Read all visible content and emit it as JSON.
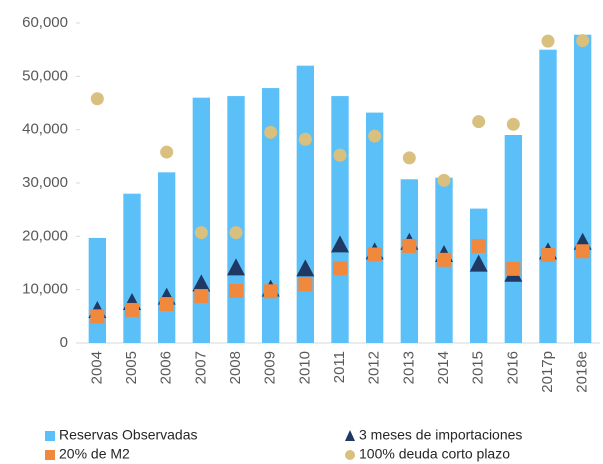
{
  "chart_data": {
    "type": "bar",
    "categories": [
      "2004",
      "2005",
      "2006",
      "2007",
      "2008",
      "2009",
      "2010",
      "2011",
      "2012",
      "2013",
      "2014",
      "2015",
      "2016",
      "2017p",
      "2018e"
    ],
    "series": [
      {
        "name": "Reservas Observadas",
        "type": "bar",
        "color": "#5bc0f8",
        "values": [
          19700,
          28000,
          32000,
          46000,
          46300,
          47800,
          52000,
          46300,
          43200,
          30700,
          31000,
          25200,
          39000,
          55000,
          57800
        ]
      },
      {
        "name": "3 meses de importaciones",
        "type": "triangle",
        "color": "#1f3864",
        "values": [
          6000,
          7500,
          8500,
          11000,
          14000,
          10000,
          13800,
          18300,
          17000,
          18800,
          16500,
          14700,
          12800,
          17000,
          18800
        ]
      },
      {
        "name": "20% de M2",
        "type": "square",
        "color": "#f0883e",
        "values": [
          5000,
          6200,
          7300,
          8800,
          9800,
          9700,
          11000,
          14000,
          16600,
          18200,
          15600,
          18200,
          13900,
          16500,
          17200
        ]
      },
      {
        "name": "100% deuda corto plazo",
        "type": "circle",
        "color": "#d9c07e",
        "values": [
          45800,
          null,
          35800,
          20700,
          20700,
          39500,
          38200,
          35200,
          38800,
          34700,
          30500,
          41500,
          41000,
          56600,
          56700
        ]
      }
    ],
    "ylim": [
      0,
      60000
    ],
    "yticks": [
      0,
      {
        "value": 10000,
        "label": "10,000"
      },
      {
        "value": 20000,
        "label": "20,000"
      },
      {
        "value": 30000,
        "label": "30,000"
      },
      {
        "value": 40000,
        "label": "40,000"
      },
      {
        "value": 50000,
        "label": "50,000"
      },
      {
        "value": 60000,
        "label": "60,000"
      }
    ]
  }
}
